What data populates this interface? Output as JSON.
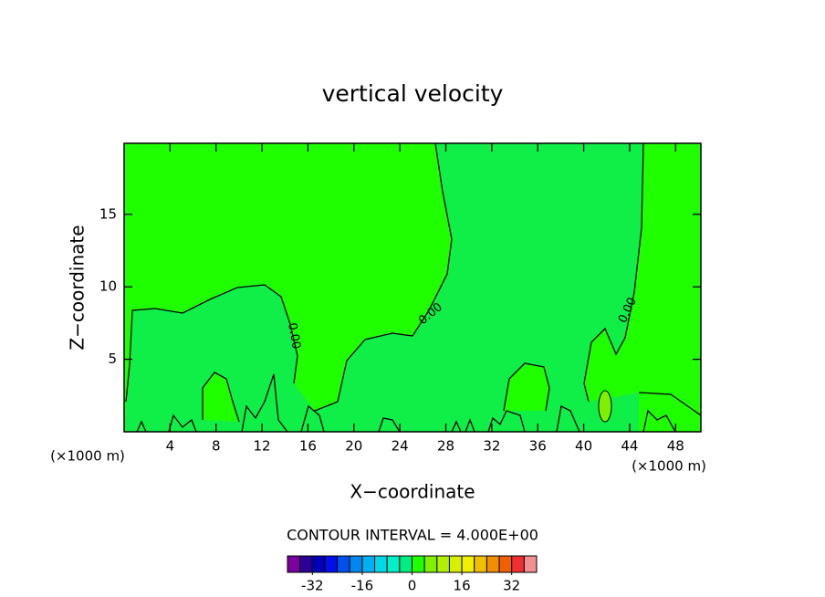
{
  "chart_data": {
    "type": "contour",
    "title": "vertical velocity",
    "xlabel": "X−coordinate",
    "ylabel": "Z−coordinate",
    "xunit": "(×1000 m)",
    "yunit": "(×1000 m)",
    "xlim": [
      0,
      50.2
    ],
    "ylim": [
      0,
      19.9
    ],
    "xticks": [
      4,
      8,
      12,
      16,
      20,
      24,
      28,
      32,
      36,
      40,
      44,
      48
    ],
    "yticks": [
      5,
      10,
      15
    ],
    "contour_level": {
      "value": 0,
      "label": "0.00"
    },
    "annotation": "CONTOUR INTERVAL = 4.000E+00",
    "colorbar": {
      "levels": [
        -40,
        -36,
        -32,
        -28,
        -24,
        -20,
        -16,
        -12,
        -8,
        -4,
        0,
        4,
        8,
        12,
        16,
        20,
        24,
        28,
        32,
        36,
        40
      ],
      "colors": [
        "#7a00a0",
        "#2a0098",
        "#0000b8",
        "#0010e8",
        "#0050f0",
        "#0088f0",
        "#00b0f0",
        "#00d8e8",
        "#00f0c8",
        "#00ec80",
        "#20ff00",
        "#80f000",
        "#b0f000",
        "#d8f000",
        "#f0f000",
        "#f0c000",
        "#f09000",
        "#f06000",
        "#f03030",
        "#f09090"
      ],
      "ticks": [
        -32,
        -16,
        0,
        16,
        32
      ]
    }
  }
}
